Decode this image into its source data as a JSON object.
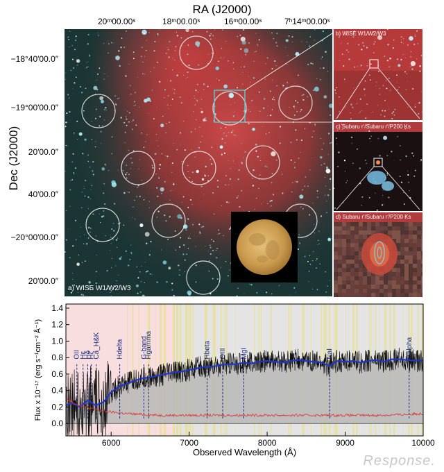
{
  "sky_map": {
    "ra_title": "RA (J2000)",
    "ra_ticks": [
      "20ᵐ00.00ˢ",
      "18ᵐ00.00ˢ",
      "16ᵐ00.00ˢ",
      "7ʰ14ᵐ00.00ˢ"
    ],
    "dec_title": "Dec (J2000)",
    "dec_ticks": [
      "−18°40′00.0″",
      "−19°00′00.0″",
      "20′00.0″",
      "40′00.0″",
      "−20°00′00.0″",
      "20′00.0″"
    ],
    "panel_a_label": "a) WISE W1/W2/W3",
    "panel_b_label": "b) WISE W1/W2/W3",
    "panel_c_label": "c) Subaru r'/Subaru r'/P200 Ks",
    "panel_d_label": "d) Subaru r'/Subaru r'/P200 Ks"
  },
  "chart_data": {
    "type": "line",
    "xlabel": "Observed Wavelength (Å)",
    "ylabel": "Flux x 10⁻¹⁷ (erg s⁻¹cm⁻² Å⁻¹)",
    "xlim": [
      5420,
      10000
    ],
    "ylim": [
      -0.15,
      1.45
    ],
    "x_ticks": [
      6000,
      7000,
      8000,
      9000,
      10000
    ],
    "y_ticks": [
      0.0,
      0.2,
      0.4,
      0.6,
      0.8,
      1.0,
      1.2,
      1.4
    ],
    "spectral_lines": [
      {
        "label": "OII",
        "x": 5560
      },
      {
        "label": "Hε",
        "x": 5640
      },
      {
        "label": "Hδ",
        "x": 5700
      },
      {
        "label": "Hζ",
        "x": 5745
      },
      {
        "label": "Ca_H&K",
        "x": 5810
      },
      {
        "label": "Hdelta",
        "x": 6110
      },
      {
        "label": "G-band",
        "x": 6420
      },
      {
        "label": "Hgamma",
        "x": 6480
      },
      {
        "label": "Hbeta",
        "x": 7230
      },
      {
        "label": "OIII",
        "x": 7430
      },
      {
        "label": "MgI",
        "x": 7700
      },
      {
        "label": "NaI",
        "x": 8800
      },
      {
        "label": "Halpha",
        "x": 9820
      }
    ],
    "series": [
      {
        "values_model": [
          [
            5420,
            0.22
          ],
          [
            5500,
            0.25
          ],
          [
            5600,
            0.2
          ],
          [
            5700,
            0.28
          ],
          [
            5800,
            0.22
          ],
          [
            5900,
            0.26
          ],
          [
            6000,
            0.38
          ],
          [
            6100,
            0.45
          ],
          [
            6200,
            0.48
          ],
          [
            6300,
            0.52
          ],
          [
            6400,
            0.55
          ],
          [
            6500,
            0.56
          ],
          [
            6600,
            0.58
          ],
          [
            6700,
            0.6
          ],
          [
            6800,
            0.62
          ],
          [
            6900,
            0.63
          ],
          [
            7000,
            0.65
          ],
          [
            7100,
            0.67
          ],
          [
            7200,
            0.69
          ],
          [
            7300,
            0.69
          ],
          [
            7400,
            0.71
          ],
          [
            7500,
            0.72
          ],
          [
            7600,
            0.72
          ],
          [
            7700,
            0.74
          ],
          [
            7800,
            0.73
          ],
          [
            7900,
            0.75
          ],
          [
            8000,
            0.76
          ],
          [
            8100,
            0.75
          ],
          [
            8200,
            0.74
          ],
          [
            8300,
            0.76
          ],
          [
            8400,
            0.77
          ],
          [
            8500,
            0.76
          ],
          [
            8600,
            0.75
          ],
          [
            8700,
            0.74
          ],
          [
            8800,
            0.7
          ],
          [
            8900,
            0.76
          ],
          [
            9000,
            0.75
          ],
          [
            9100,
            0.76
          ],
          [
            9200,
            0.74
          ],
          [
            9300,
            0.76
          ],
          [
            9400,
            0.77
          ],
          [
            9500,
            0.75
          ],
          [
            9600,
            0.78
          ],
          [
            9700,
            0.78
          ],
          [
            9800,
            0.77
          ],
          [
            9900,
            0.76
          ],
          [
            10000,
            0.77
          ]
        ]
      },
      {
        "values_error": [
          [
            5420,
            0.3
          ],
          [
            5500,
            0.26
          ],
          [
            5600,
            0.22
          ],
          [
            5700,
            0.19
          ],
          [
            5800,
            0.17
          ],
          [
            5900,
            0.15
          ],
          [
            6000,
            0.14
          ],
          [
            6200,
            0.12
          ],
          [
            6400,
            0.11
          ],
          [
            6600,
            0.1
          ],
          [
            6800,
            0.1
          ],
          [
            7000,
            0.1
          ],
          [
            7500,
            0.1
          ],
          [
            8000,
            0.1
          ],
          [
            8500,
            0.1
          ],
          [
            9000,
            0.1
          ],
          [
            9500,
            0.1
          ],
          [
            10000,
            0.12
          ]
        ]
      }
    ]
  },
  "watermark": "Response."
}
